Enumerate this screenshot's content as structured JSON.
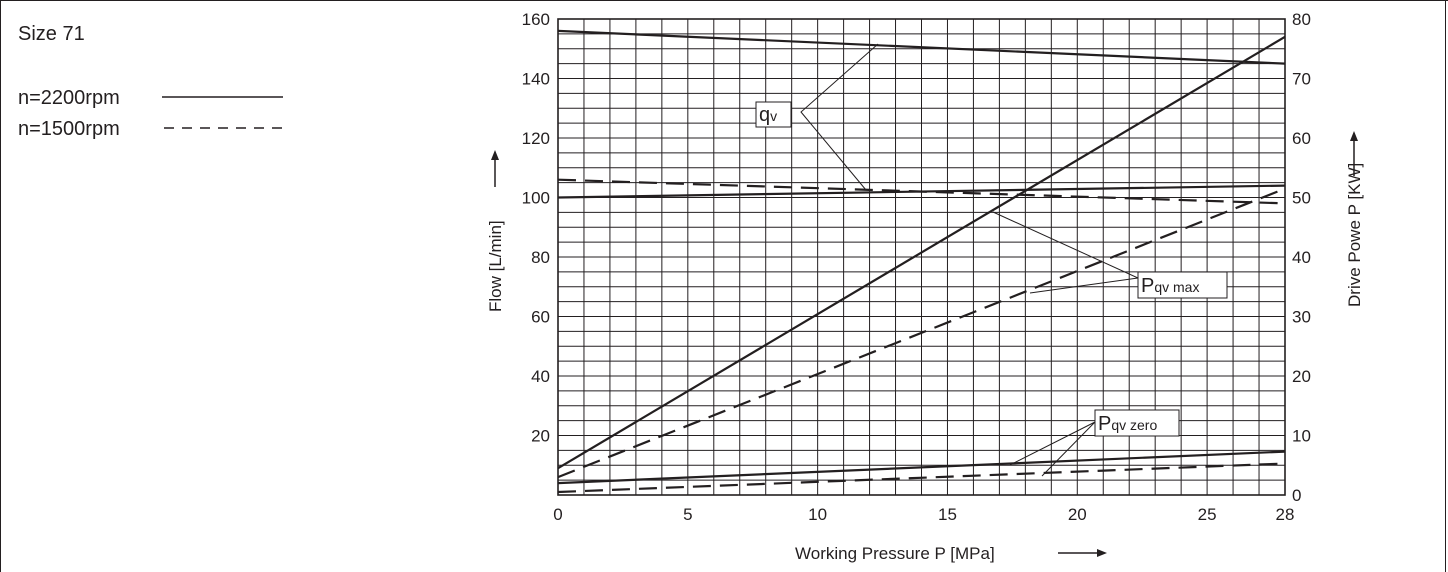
{
  "chart_data": {
    "type": "line",
    "title": "Size 71",
    "legend": [
      {
        "label": "n=2200rpm",
        "style": "solid"
      },
      {
        "label": "n=1500rpm",
        "style": "dashed"
      }
    ],
    "xlabel": "Working Pressure  P [MPa]",
    "ylabel_left": "Flow [L/min]",
    "ylabel_right": "Drive Powe P [KW]",
    "xlim": [
      0,
      28
    ],
    "ylim_left": [
      0,
      160
    ],
    "ylim_right": [
      0,
      80
    ],
    "x_ticks": [
      "0",
      "5",
      "10",
      "15",
      "20",
      "25",
      "28"
    ],
    "y_ticks_left": [
      "20",
      "40",
      "60",
      "80",
      "100",
      "120",
      "140",
      "160"
    ],
    "y_ticks_right": [
      "0",
      "10",
      "20",
      "30",
      "40",
      "50",
      "60",
      "70",
      "80"
    ],
    "grid": true,
    "series": [
      {
        "group": "qv",
        "rpm": "n=2200rpm",
        "style": "solid",
        "axis": "left",
        "x": [
          0,
          28
        ],
        "y": [
          156,
          145
        ]
      },
      {
        "group": "qv",
        "rpm": "n=1500rpm",
        "style": "dashed",
        "axis": "left",
        "x": [
          0,
          28
        ],
        "y": [
          106,
          98
        ]
      },
      {
        "group": "Pqv max",
        "rpm": "n=2200rpm",
        "style": "solid",
        "axis": "right",
        "x": [
          0,
          28
        ],
        "y": [
          4.5,
          77
        ]
      },
      {
        "group": "Pqv max",
        "rpm": "n=1500rpm",
        "style": "dashed",
        "axis": "right",
        "x": [
          0,
          28
        ],
        "y": [
          3,
          51.5
        ]
      },
      {
        "group": "Pqv max",
        "rpm": "n=2200rpm",
        "style": "solid",
        "axis": "right",
        "x": [
          0,
          28
        ],
        "y": [
          50,
          52
        ]
      },
      {
        "group": "Pqv zero",
        "rpm": "n=2200rpm",
        "style": "solid",
        "axis": "right",
        "x": [
          0,
          28
        ],
        "y": [
          2,
          7.3
        ]
      },
      {
        "group": "Pqv zero",
        "rpm": "n=1500rpm",
        "style": "dashed",
        "axis": "right",
        "x": [
          0,
          28
        ],
        "y": [
          0.5,
          5.3
        ]
      }
    ],
    "annotations": [
      {
        "main": "q",
        "sub": "v"
      },
      {
        "main": "P",
        "sub": "qv max"
      },
      {
        "main": "P",
        "sub": "qv zero"
      }
    ]
  }
}
